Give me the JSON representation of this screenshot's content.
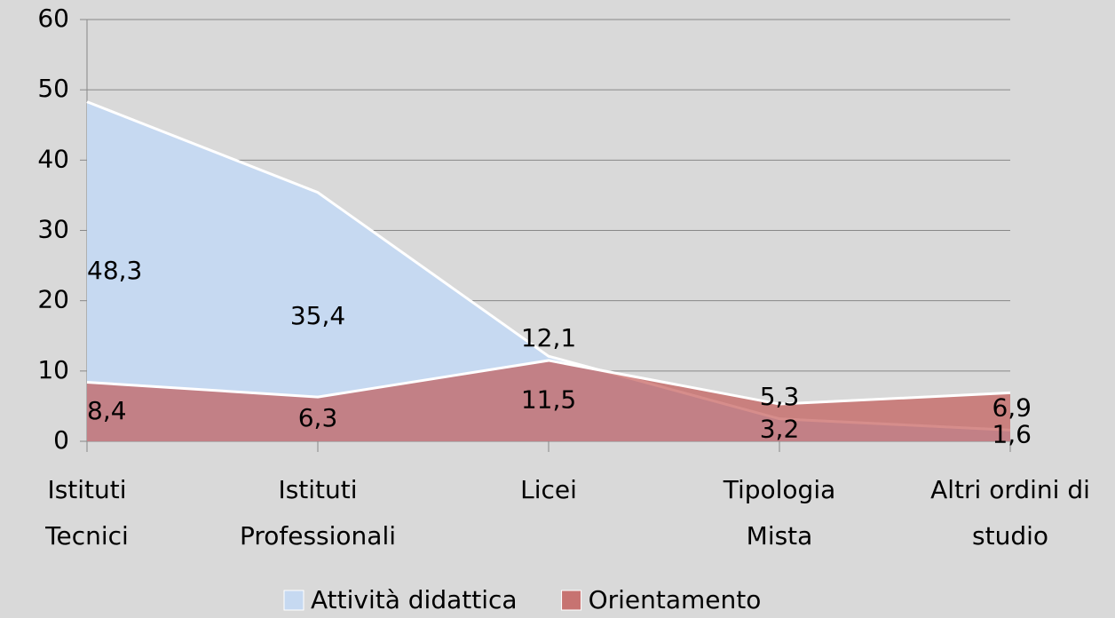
{
  "chart_data": {
    "type": "area",
    "categories": [
      "Istituti Tecnici",
      "Istituti Professionali",
      "Licei",
      "Tipologia Mista",
      "Altri ordini di studio"
    ],
    "series": [
      {
        "name": "Attività didattica",
        "color": "#c6d9f1",
        "values": [
          48.3,
          35.4,
          12.1,
          3.2,
          1.6
        ],
        "value_labels": [
          "48,3",
          "35,4",
          "12,1",
          "3,2",
          "1,6"
        ]
      },
      {
        "name": "Orientamento",
        "color": "#c0504d",
        "values": [
          8.4,
          6.3,
          11.5,
          5.3,
          6.9
        ],
        "value_labels": [
          "8,4",
          "6,3",
          "11,5",
          "5,3",
          "6,9"
        ]
      }
    ],
    "ylim": [
      0,
      60
    ],
    "yticks": [
      0,
      10,
      20,
      30,
      40,
      50,
      60
    ],
    "grid": true
  }
}
